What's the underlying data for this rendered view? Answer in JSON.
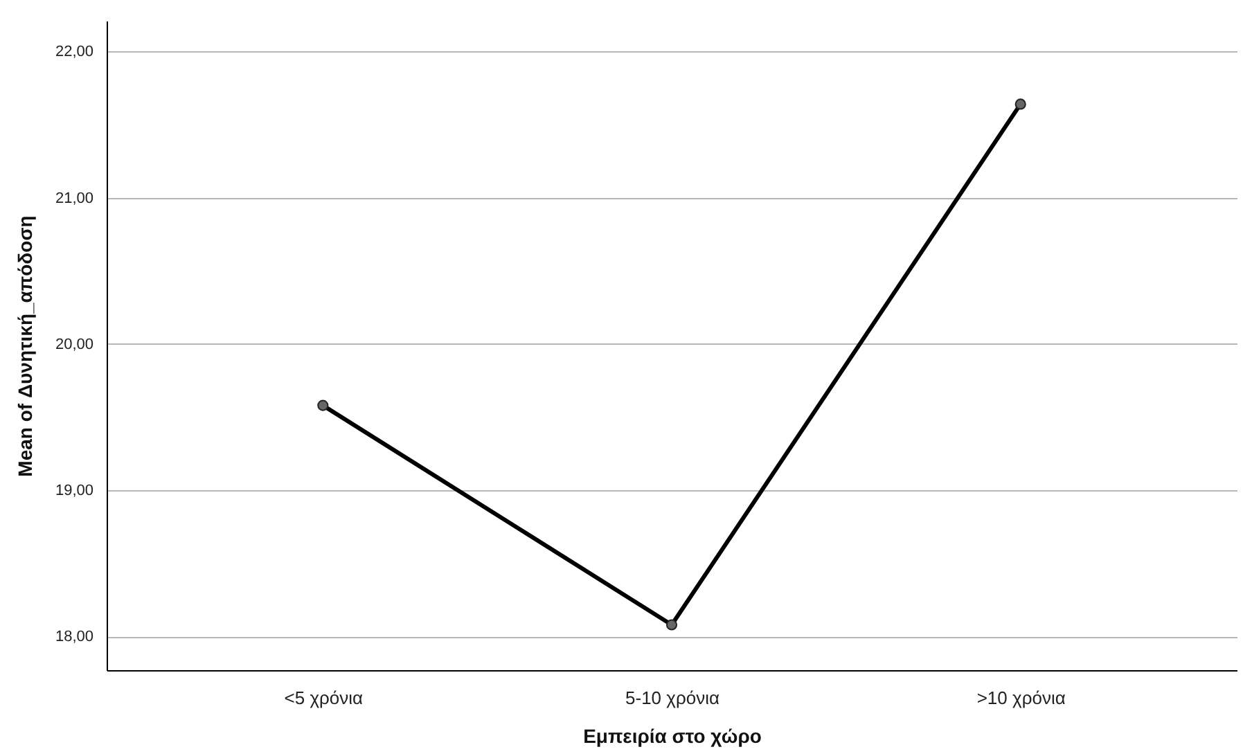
{
  "chart_data": {
    "type": "line",
    "xlabel": "Εμπειρία στο χώρο",
    "ylabel": "Mean of Δυνητική_απόδοση",
    "categories": [
      "<5 χρόνια",
      "5-10 χρόνια",
      ">10 χρόνια"
    ],
    "series": [
      {
        "color": "#000000",
        "values": [
          19.58,
          18.08,
          21.64
        ]
      }
    ],
    "ylim": [
      17.77,
      22.21
    ],
    "yticks": [
      {
        "value": 18,
        "label": "18,00"
      },
      {
        "value": 19,
        "label": "19,00"
      },
      {
        "value": 20,
        "label": "20,00"
      },
      {
        "value": 21,
        "label": "21,00"
      },
      {
        "value": 22,
        "label": "22,00"
      }
    ],
    "grid": "y",
    "marker": "circle",
    "line_style": "solid"
  }
}
